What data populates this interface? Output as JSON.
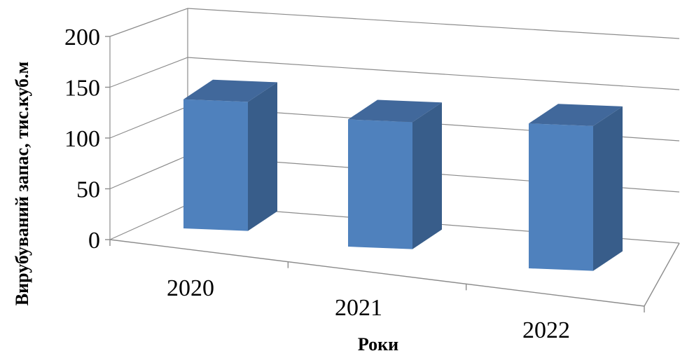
{
  "chart_data": {
    "type": "bar",
    "categories": [
      "2020",
      "2021",
      "2022"
    ],
    "series": [
      {
        "values": [
          131,
          129,
          147
        ]
      }
    ],
    "ylim": [
      0,
      200
    ],
    "yticks": [
      "0",
      "50",
      "100",
      "150",
      "200"
    ],
    "xlabel": "Роки",
    "ylabel": "Вирубуваний запас, тис.куб.м",
    "grid": true,
    "bar_color": "#4f81bd",
    "bar_side_color": "#385d8a",
    "bar_top_color": "#41689b"
  }
}
